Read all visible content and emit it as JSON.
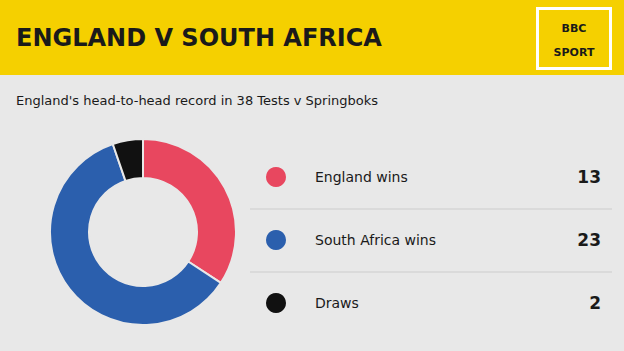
{
  "chart_data": {
    "type": "pie",
    "title": "ENGLAND V SOUTH AFRICA",
    "subtitle": "England's head-to-head record in 38 Tests v Springboks",
    "categories": [
      "England wins",
      "South Africa wins",
      "Draws"
    ],
    "values": [
      13,
      23,
      2
    ],
    "colors": [
      "#e8475f",
      "#2b5fad",
      "#111111"
    ],
    "data_labels": true,
    "legend": "right",
    "annotations": [
      "BBC",
      "SPORT"
    ]
  }
}
